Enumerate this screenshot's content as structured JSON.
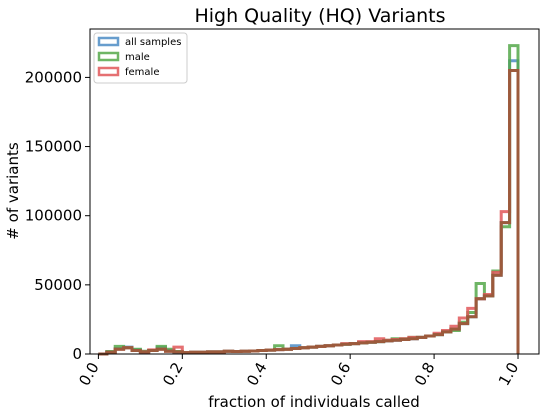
{
  "chart_data": {
    "type": "histogram",
    "title": "High Quality (HQ) Variants",
    "xlabel": "fraction of individuals called",
    "ylabel": "# of variants",
    "xlim": [
      -0.02,
      1.05
    ],
    "ylim": [
      0,
      235000
    ],
    "xticks": [
      0.0,
      0.2,
      0.4,
      0.6,
      0.8,
      1.0
    ],
    "xtick_labels": [
      "0.0",
      "0.2",
      "0.4",
      "0.6",
      "0.8",
      "1.0"
    ],
    "yticks": [
      0,
      50000,
      100000,
      150000,
      200000
    ],
    "ytick_labels": [
      "0",
      "50000",
      "100000",
      "150000",
      "200000"
    ],
    "legend": {
      "position": "upper left"
    },
    "bin_edges": [
      0.0,
      0.02,
      0.04,
      0.06,
      0.08,
      0.1,
      0.12,
      0.14,
      0.16,
      0.18,
      0.2,
      0.22,
      0.24,
      0.26,
      0.28,
      0.3,
      0.32,
      0.34,
      0.36,
      0.38,
      0.4,
      0.42,
      0.44,
      0.46,
      0.48,
      0.5,
      0.52,
      0.54,
      0.56,
      0.58,
      0.6,
      0.62,
      0.64,
      0.66,
      0.68,
      0.7,
      0.72,
      0.74,
      0.76,
      0.78,
      0.8,
      0.82,
      0.84,
      0.86,
      0.88,
      0.9,
      0.92,
      0.94,
      0.96,
      0.98,
      1.0
    ],
    "series": [
      {
        "name": "all samples",
        "color": "#4c8cc4",
        "values": [
          0,
          1500,
          4000,
          5000,
          3000,
          1500,
          2500,
          4500,
          2500,
          1500,
          1000,
          1200,
          1300,
          1500,
          1500,
          2000,
          1800,
          2000,
          2200,
          2500,
          2800,
          3200,
          3500,
          6000,
          4500,
          5000,
          5500,
          6000,
          6500,
          7000,
          7500,
          8000,
          8500,
          9000,
          9500,
          10000,
          10500,
          11000,
          12000,
          13000,
          14000,
          16000,
          18000,
          22000,
          27000,
          40000,
          42000,
          57000,
          95000,
          212000
        ]
      },
      {
        "name": "male",
        "color": "#55a84a",
        "values": [
          0,
          1800,
          5500,
          4500,
          3500,
          2000,
          2500,
          5500,
          3500,
          1800,
          1000,
          1200,
          1300,
          1500,
          1500,
          2000,
          1800,
          2000,
          2200,
          2500,
          2800,
          6000,
          3500,
          4000,
          4500,
          5000,
          5500,
          6000,
          6500,
          7000,
          7500,
          8000,
          8500,
          9000,
          10000,
          11000,
          11000,
          12000,
          12000,
          13000,
          14000,
          16000,
          17000,
          23000,
          30000,
          51000,
          42000,
          60000,
          92000,
          223000
        ]
      },
      {
        "name": "female",
        "color": "#e15759",
        "values": [
          0,
          1200,
          3500,
          4500,
          2500,
          1500,
          3000,
          3500,
          2000,
          5000,
          1000,
          1200,
          1300,
          1500,
          1500,
          2000,
          1800,
          2000,
          2200,
          2500,
          2800,
          3200,
          3500,
          4000,
          4500,
          5000,
          5500,
          6000,
          6500,
          7500,
          7500,
          9000,
          9000,
          11000,
          10000,
          10500,
          11000,
          12000,
          12000,
          13000,
          15000,
          17000,
          20000,
          26000,
          33000,
          40000,
          43000,
          59000,
          103000,
          205000
        ]
      },
      {
        "name": "",
        "color": "#9c5a3c",
        "values": [
          0,
          1200,
          3500,
          4500,
          2500,
          1500,
          2500,
          3500,
          2000,
          1500,
          1000,
          1200,
          1300,
          1500,
          1500,
          2000,
          1800,
          2000,
          2200,
          2500,
          2800,
          3200,
          3500,
          4000,
          4500,
          5000,
          5500,
          6000,
          6500,
          7000,
          7500,
          8000,
          8500,
          9000,
          9500,
          10000,
          10500,
          11000,
          12000,
          13000,
          14000,
          16000,
          18000,
          22000,
          27000,
          40000,
          42000,
          57000,
          95000,
          205000
        ]
      }
    ]
  }
}
